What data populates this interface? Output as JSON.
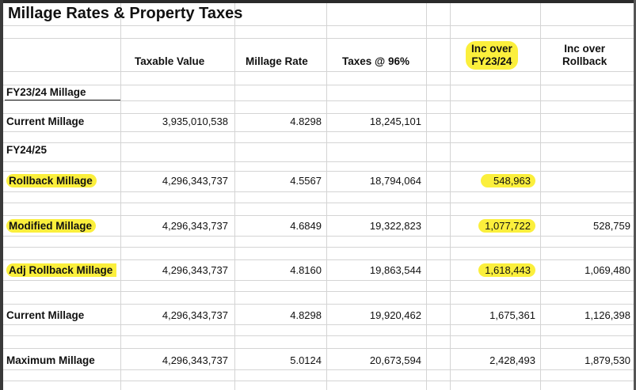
{
  "title": "Millage Rates & Property Taxes",
  "headers": {
    "taxable_value": "Taxable Value",
    "millage_rate": "Millage Rate",
    "taxes": "Taxes @ 96%",
    "inc_fy_line1": "Inc over",
    "inc_fy_line2": "FY23/24",
    "inc_rb_line1": "Inc over",
    "inc_rb_line2": "Rollback"
  },
  "sections": {
    "fy2324": "FY23/24 Millage",
    "fy2425": "FY24/25"
  },
  "rows": [
    {
      "label": "Current Millage",
      "taxable": "3,935,010,538",
      "rate": "4.8298",
      "taxes": "18,245,101",
      "inc_fy": "",
      "inc_rb": ""
    },
    {
      "label": "Rollback Millage",
      "taxable": "4,296,343,737",
      "rate": "4.5567",
      "taxes": "18,794,064",
      "inc_fy": "548,963",
      "inc_rb": ""
    },
    {
      "label": "Modified Millage",
      "taxable": "4,296,343,737",
      "rate": "4.6849",
      "taxes": "19,322,823",
      "inc_fy": "1,077,722",
      "inc_rb": "528,759"
    },
    {
      "label": "Adj Rollback Millage",
      "taxable": "4,296,343,737",
      "rate": "4.8160",
      "taxes": "19,863,544",
      "inc_fy": "1,618,443",
      "inc_rb": "1,069,480"
    },
    {
      "label": "Current Millage",
      "taxable": "4,296,343,737",
      "rate": "4.8298",
      "taxes": "19,920,462",
      "inc_fy": "1,675,361",
      "inc_rb": "1,126,398"
    },
    {
      "label": "Maximum Millage",
      "taxable": "4,296,343,737",
      "rate": "5.0124",
      "taxes": "20,673,594",
      "inc_fy": "2,428,493",
      "inc_rb": "1,879,530"
    }
  ],
  "highlight_color": "#fbef3c"
}
